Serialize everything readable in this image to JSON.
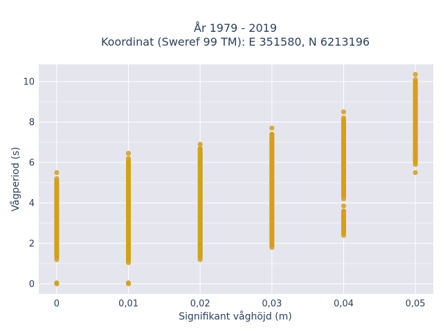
{
  "chart_data": {
    "type": "scatter",
    "title": "År 1979 - 2019",
    "subtitle": "Koordinat (Sweref 99 TM): E 351580, N 6213196",
    "xlabel": "Signifikant våghöjd (m)",
    "ylabel": "Vågperiod (s)",
    "x_tick_labels": [
      "0",
      "0,01",
      "0,02",
      "0,03",
      "0,04",
      "0,05"
    ],
    "y_tick_labels": [
      "0",
      "2",
      "4",
      "6",
      "8",
      "10"
    ],
    "x_ticks": [
      0,
      0.01,
      0.02,
      0.03,
      0.04,
      0.05
    ],
    "y_ticks": [
      0,
      2,
      4,
      6,
      8,
      10
    ],
    "xlim": [
      -0.0025,
      0.0525
    ],
    "ylim": [
      -0.5,
      10.85
    ],
    "grid": true,
    "marker_color": "#d4a017",
    "plot_background": "#e5e5ee",
    "series": [
      {
        "points": [
          [
            0,
            0
          ],
          [
            0,
            0.05
          ],
          [
            0,
            1.2
          ],
          [
            0,
            1.4
          ],
          [
            0,
            1.6
          ],
          [
            0,
            1.8
          ],
          [
            0,
            2.0
          ],
          [
            0,
            2.2
          ],
          [
            0,
            2.4
          ],
          [
            0,
            2.6
          ],
          [
            0,
            2.8
          ],
          [
            0,
            3.0
          ],
          [
            0,
            3.2
          ],
          [
            0,
            3.4
          ],
          [
            0,
            3.6
          ],
          [
            0,
            3.8
          ],
          [
            0,
            4.0
          ],
          [
            0,
            4.2
          ],
          [
            0,
            4.4
          ],
          [
            0,
            4.6
          ],
          [
            0,
            4.8
          ],
          [
            0,
            5.0
          ],
          [
            0,
            5.2
          ],
          [
            0,
            5.5
          ],
          [
            0.01,
            0
          ],
          [
            0.01,
            0.05
          ],
          [
            0.01,
            1.05
          ],
          [
            0.01,
            1.2
          ],
          [
            0.01,
            1.4
          ],
          [
            0.01,
            1.6
          ],
          [
            0.01,
            1.8
          ],
          [
            0.01,
            2.0
          ],
          [
            0.01,
            2.2
          ],
          [
            0.01,
            2.4
          ],
          [
            0.01,
            2.6
          ],
          [
            0.01,
            2.8
          ],
          [
            0.01,
            3.0
          ],
          [
            0.01,
            3.2
          ],
          [
            0.01,
            3.4
          ],
          [
            0.01,
            3.6
          ],
          [
            0.01,
            3.8
          ],
          [
            0.01,
            4.0
          ],
          [
            0.01,
            4.2
          ],
          [
            0.01,
            4.4
          ],
          [
            0.01,
            4.6
          ],
          [
            0.01,
            4.8
          ],
          [
            0.01,
            5.0
          ],
          [
            0.01,
            5.2
          ],
          [
            0.01,
            5.4
          ],
          [
            0.01,
            5.6
          ],
          [
            0.01,
            5.8
          ],
          [
            0.01,
            6.0
          ],
          [
            0.01,
            6.2
          ],
          [
            0.01,
            6.45
          ],
          [
            0.02,
            1.2
          ],
          [
            0.02,
            1.4
          ],
          [
            0.02,
            1.6
          ],
          [
            0.02,
            1.8
          ],
          [
            0.02,
            2.0
          ],
          [
            0.02,
            2.2
          ],
          [
            0.02,
            2.4
          ],
          [
            0.02,
            2.6
          ],
          [
            0.02,
            2.8
          ],
          [
            0.02,
            3.0
          ],
          [
            0.02,
            3.2
          ],
          [
            0.02,
            3.4
          ],
          [
            0.02,
            3.6
          ],
          [
            0.02,
            3.8
          ],
          [
            0.02,
            4.0
          ],
          [
            0.02,
            4.2
          ],
          [
            0.02,
            4.4
          ],
          [
            0.02,
            4.6
          ],
          [
            0.02,
            4.8
          ],
          [
            0.02,
            5.0
          ],
          [
            0.02,
            5.2
          ],
          [
            0.02,
            5.4
          ],
          [
            0.02,
            5.6
          ],
          [
            0.02,
            5.8
          ],
          [
            0.02,
            6.0
          ],
          [
            0.02,
            6.2
          ],
          [
            0.02,
            6.4
          ],
          [
            0.02,
            6.6
          ],
          [
            0.02,
            6.9
          ],
          [
            0.03,
            1.8
          ],
          [
            0.03,
            2.0
          ],
          [
            0.03,
            2.2
          ],
          [
            0.03,
            2.4
          ],
          [
            0.03,
            2.6
          ],
          [
            0.03,
            2.8
          ],
          [
            0.03,
            3.0
          ],
          [
            0.03,
            3.2
          ],
          [
            0.03,
            3.4
          ],
          [
            0.03,
            3.6
          ],
          [
            0.03,
            3.8
          ],
          [
            0.03,
            4.0
          ],
          [
            0.03,
            4.2
          ],
          [
            0.03,
            4.4
          ],
          [
            0.03,
            4.6
          ],
          [
            0.03,
            4.8
          ],
          [
            0.03,
            5.0
          ],
          [
            0.03,
            5.2
          ],
          [
            0.03,
            5.4
          ],
          [
            0.03,
            5.6
          ],
          [
            0.03,
            5.8
          ],
          [
            0.03,
            6.0
          ],
          [
            0.03,
            6.2
          ],
          [
            0.03,
            6.4
          ],
          [
            0.03,
            6.6
          ],
          [
            0.03,
            6.8
          ],
          [
            0.03,
            7.0
          ],
          [
            0.03,
            7.2
          ],
          [
            0.03,
            7.4
          ],
          [
            0.03,
            7.7
          ],
          [
            0.04,
            2.4
          ],
          [
            0.04,
            2.6
          ],
          [
            0.04,
            2.8
          ],
          [
            0.04,
            3.0
          ],
          [
            0.04,
            3.2
          ],
          [
            0.04,
            3.4
          ],
          [
            0.04,
            3.6
          ],
          [
            0.04,
            3.85
          ],
          [
            0.04,
            4.2
          ],
          [
            0.04,
            4.4
          ],
          [
            0.04,
            4.6
          ],
          [
            0.04,
            4.8
          ],
          [
            0.04,
            5.0
          ],
          [
            0.04,
            5.2
          ],
          [
            0.04,
            5.4
          ],
          [
            0.04,
            5.6
          ],
          [
            0.04,
            5.8
          ],
          [
            0.04,
            6.0
          ],
          [
            0.04,
            6.2
          ],
          [
            0.04,
            6.4
          ],
          [
            0.04,
            6.6
          ],
          [
            0.04,
            6.8
          ],
          [
            0.04,
            7.0
          ],
          [
            0.04,
            7.2
          ],
          [
            0.04,
            7.4
          ],
          [
            0.04,
            7.6
          ],
          [
            0.04,
            7.8
          ],
          [
            0.04,
            8.0
          ],
          [
            0.04,
            8.2
          ],
          [
            0.04,
            8.5
          ],
          [
            0.05,
            5.5
          ],
          [
            0.05,
            5.9
          ],
          [
            0.05,
            6.1
          ],
          [
            0.05,
            6.3
          ],
          [
            0.05,
            6.5
          ],
          [
            0.05,
            6.7
          ],
          [
            0.05,
            6.9
          ],
          [
            0.05,
            7.1
          ],
          [
            0.05,
            7.3
          ],
          [
            0.05,
            7.5
          ],
          [
            0.05,
            7.7
          ],
          [
            0.05,
            7.9
          ],
          [
            0.05,
            8.1
          ],
          [
            0.05,
            8.3
          ],
          [
            0.05,
            8.5
          ],
          [
            0.05,
            8.7
          ],
          [
            0.05,
            8.9
          ],
          [
            0.05,
            9.1
          ],
          [
            0.05,
            9.3
          ],
          [
            0.05,
            9.5
          ],
          [
            0.05,
            9.7
          ],
          [
            0.05,
            9.9
          ],
          [
            0.05,
            10.1
          ],
          [
            0.05,
            10.35
          ]
        ]
      }
    ]
  }
}
